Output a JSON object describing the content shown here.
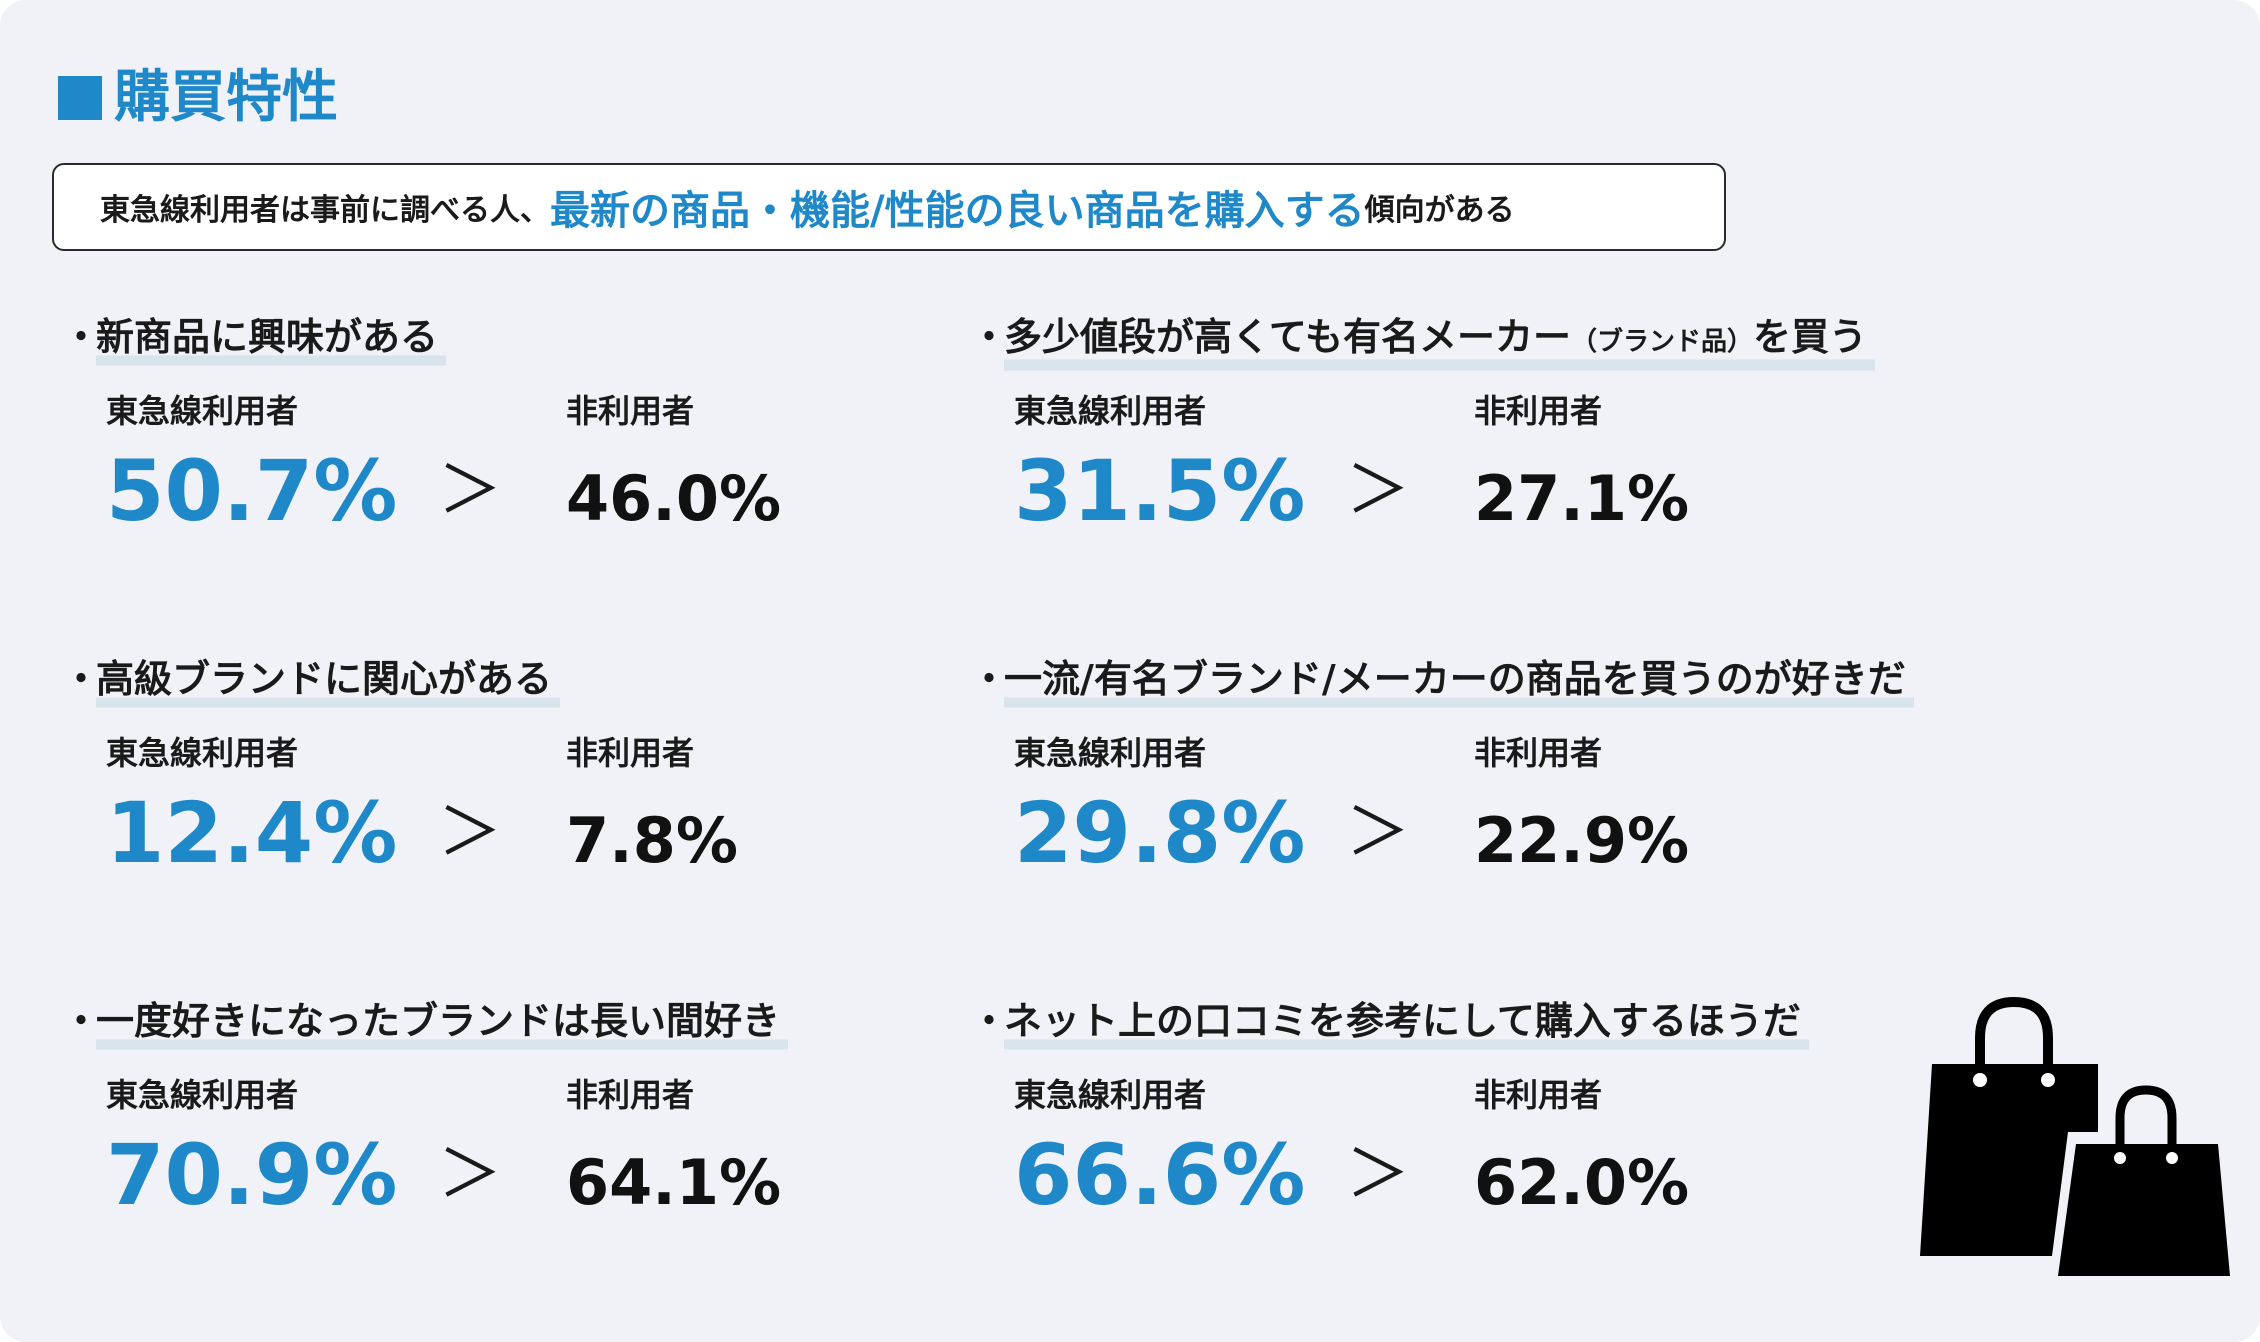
{
  "title": "購買特性",
  "summary": {
    "prefix": "東急線利用者は事前に調べる人、",
    "highlight": "最新の商品・機能/性能の良い商品を購入する",
    "suffix": "傾向がある"
  },
  "label_user": "東急線利用者",
  "label_nonuser": "非利用者",
  "compare_symbol": "＞",
  "bullet": "・",
  "colors": {
    "accent": "#1e88c9",
    "panel": "#f0f2f7",
    "underline": "#d8e3ec"
  },
  "items": [
    {
      "heading": "新商品に興味がある",
      "user_value": "50.7%",
      "nonuser_value": "46.0%"
    },
    {
      "heading": "多少値段が高くても有名メーカー",
      "heading_small": "（ブランド品）",
      "heading_tail": "を買う",
      "user_value": "31.5%",
      "nonuser_value": "27.1%"
    },
    {
      "heading": "高級ブランドに関心がある",
      "user_value": "12.4%",
      "nonuser_value": "7.8%"
    },
    {
      "heading": "一流/有名ブランド/メーカーの商品を買うのが好きだ",
      "user_value": "29.8%",
      "nonuser_value": "22.9%"
    },
    {
      "heading": "一度好きになったブランドは長い間好き",
      "user_value": "70.9%",
      "nonuser_value": "64.1%"
    },
    {
      "heading": "ネット上の口コミを参考にして購入するほうだ",
      "user_value": "66.6%",
      "nonuser_value": "62.0%"
    }
  ],
  "decoration_icon": "shopping-bags-icon"
}
